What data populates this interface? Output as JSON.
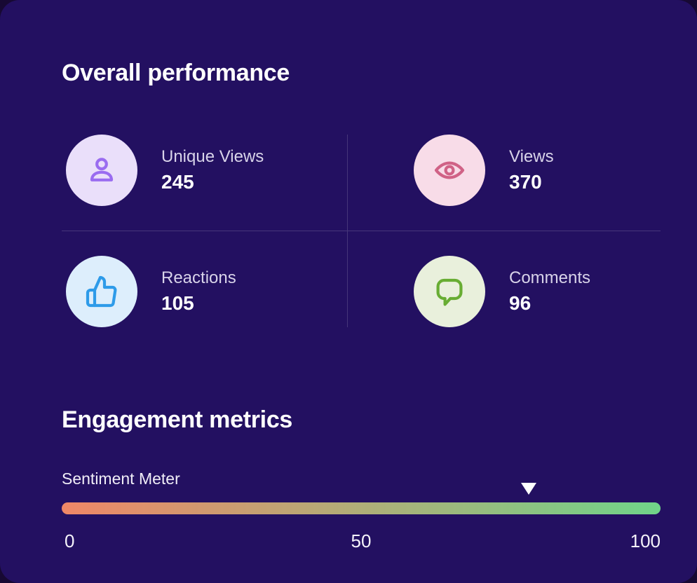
{
  "card_background": "#231061",
  "overall": {
    "title": "Overall performance",
    "metrics": [
      {
        "id": "unique-views",
        "label": "Unique Views",
        "value": "245",
        "icon": "person-icon",
        "icon_color": "#9a6cf0",
        "icon_bg": "#eadffa"
      },
      {
        "id": "views",
        "label": "Views",
        "value": "370",
        "icon": "eye-icon",
        "icon_color": "#d06286",
        "icon_bg": "#f8dce8"
      },
      {
        "id": "reactions",
        "label": "Reactions",
        "value": "105",
        "icon": "thumbs-up-icon",
        "icon_color": "#2e9be9",
        "icon_bg": "#ddeefc"
      },
      {
        "id": "comments",
        "label": "Comments",
        "value": "96",
        "icon": "comment-icon",
        "icon_color": "#68ad33",
        "icon_bg": "#e9f0dc"
      }
    ]
  },
  "engagement": {
    "title": "Engagement metrics",
    "sentiment": {
      "label": "Sentiment Meter",
      "value": 78,
      "scale": {
        "min": "0",
        "mid": "50",
        "max": "100"
      },
      "gradient_start": "#ef8767",
      "gradient_end": "#70d489",
      "marker_color": "#ffffff"
    }
  }
}
